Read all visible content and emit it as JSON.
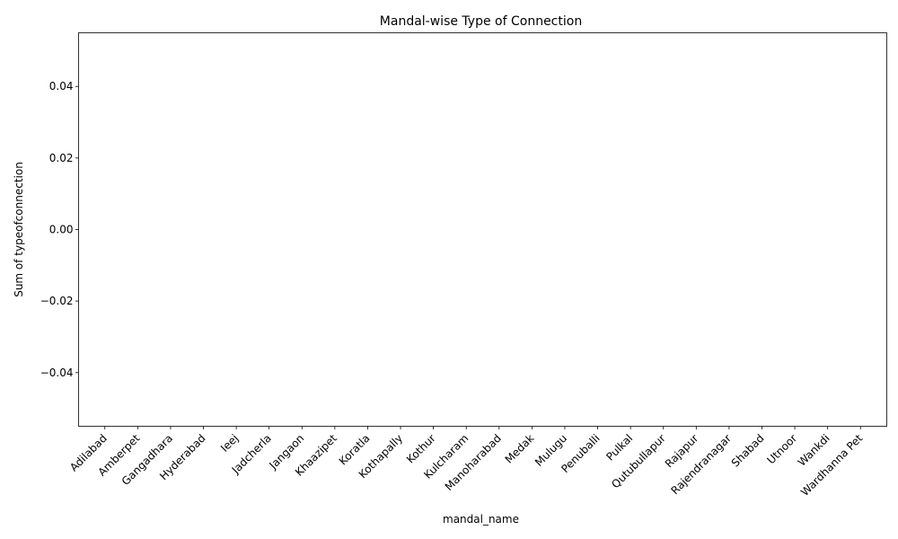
{
  "chart_data": {
    "type": "bar",
    "title": "Mandal-wise Type of Connection",
    "xlabel": "mandal_name",
    "ylabel": "Sum of typeofconnection",
    "categories": [
      "Adilabad",
      "Amberpet",
      "Gangadhara",
      "Hyderabad",
      "Ieej",
      "Jadcherla",
      "Jangaon",
      "Khaazipet",
      "Koratla",
      "Kothapally",
      "Kothur",
      "Kulcharam",
      "Manoharabad",
      "Medak",
      "Mulugu",
      "Penuballi",
      "Pulkal",
      "Qutubullapur",
      "Rajapur",
      "Rajendranagar",
      "Shabad",
      "Utnoor",
      "Wankdi",
      "Wardhanna Pet"
    ],
    "values": [
      0,
      0,
      0,
      0,
      0,
      0,
      0,
      0,
      0,
      0,
      0,
      0,
      0,
      0,
      0,
      0,
      0,
      0,
      0,
      0,
      0,
      0,
      0,
      0
    ],
    "ylim": [
      -0.055,
      0.055
    ],
    "yticks": [
      -0.04,
      -0.02,
      0.0,
      0.02,
      0.04
    ],
    "ytick_labels": [
      "−0.04",
      "−0.02",
      "0.00",
      "0.02",
      "0.04"
    ],
    "bar_color": "#1f77b4",
    "grid": false,
    "legend": "none"
  }
}
